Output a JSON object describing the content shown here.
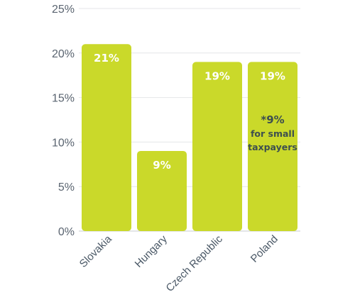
{
  "chart_data": {
    "type": "bar",
    "categories": [
      "Slovakia",
      "Hungary",
      "Czech Republic",
      "Poland"
    ],
    "values": [
      21,
      9,
      19,
      19
    ],
    "data_labels": [
      "21%",
      "9%",
      "19%",
      "19%"
    ],
    "y_ticks": [
      "0%",
      "5%",
      "10%",
      "15%",
      "20%",
      "25%"
    ],
    "ylim": [
      0,
      25
    ],
    "grid": true,
    "bar_color": "#cad92a",
    "annotation": {
      "category": "Poland",
      "lines": [
        "*9%",
        "for small",
        "taxpayers"
      ]
    },
    "title": "",
    "xlabel": "",
    "ylabel": ""
  }
}
